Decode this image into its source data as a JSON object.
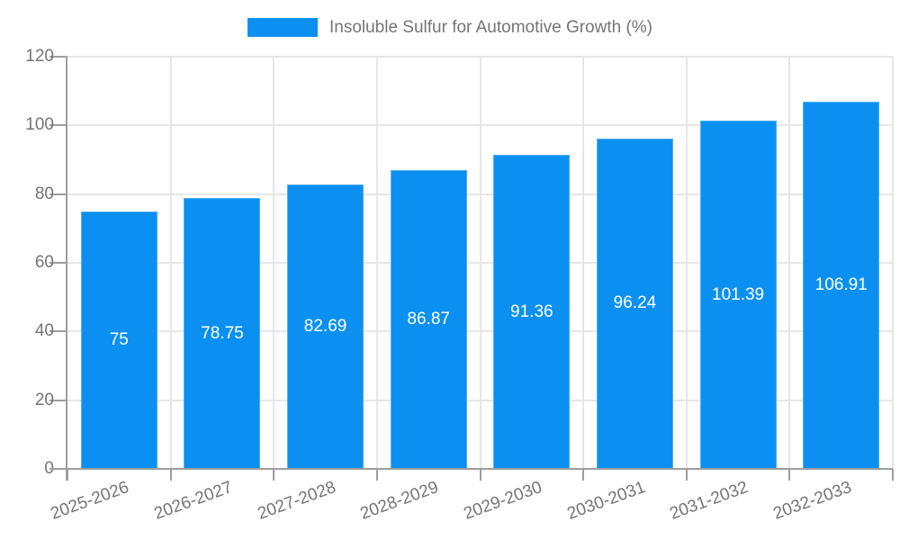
{
  "chart_data": {
    "type": "bar",
    "title": "",
    "legend": [
      "Insoluble Sulfur for Automotive Growth (%)"
    ],
    "legend_position": "top-center",
    "categories": [
      "2025-2026",
      "2026-2027",
      "2027-2028",
      "2028-2029",
      "2029-2030",
      "2030-2031",
      "2031-2032",
      "2032-2033"
    ],
    "series": [
      {
        "name": "Insoluble Sulfur for Automotive Growth (%)",
        "values": [
          75,
          78.75,
          82.69,
          86.87,
          91.36,
          96.24,
          101.39,
          106.91
        ]
      }
    ],
    "value_labels": [
      "75",
      "78.75",
      "82.69",
      "86.87",
      "91.36",
      "96.24",
      "101.39",
      "106.91"
    ],
    "bar_label_position": "inside-center",
    "xlabel": "",
    "ylabel": "",
    "ylim": [
      0,
      120
    ],
    "yticks": [
      0,
      20,
      40,
      60,
      80,
      100,
      120
    ],
    "grid": true,
    "colors": {
      "bar": "#0b90f2",
      "bar_border": "#4fb0f4",
      "bar_label": "#ffffff",
      "axis": "#9e9e9e",
      "grid": "#e6e6e6",
      "text": "#757575"
    }
  }
}
